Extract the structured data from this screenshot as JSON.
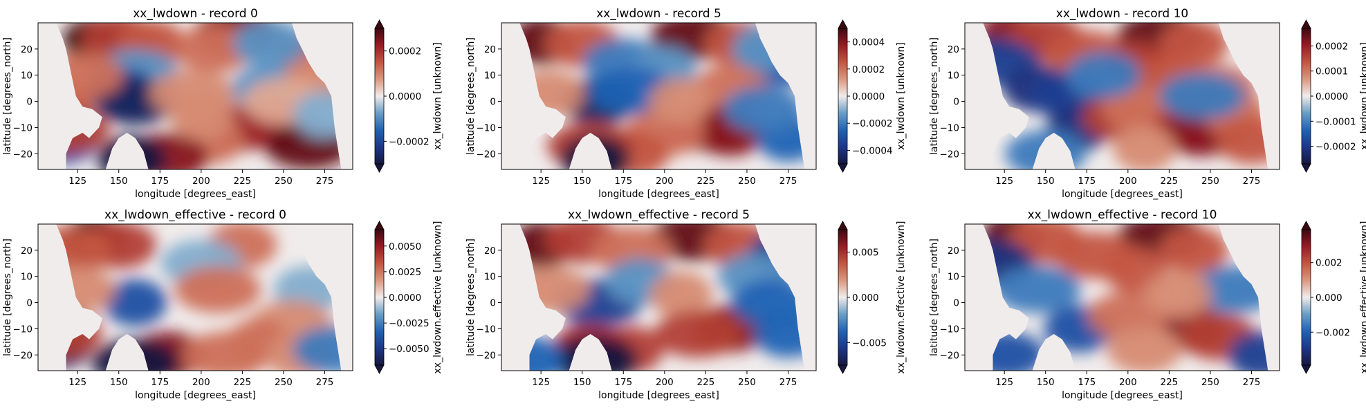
{
  "chart_data": [
    {
      "type": "heatmap",
      "title": "xx_lwdown - record 0",
      "xlabel": "longitude [degrees_east]",
      "ylabel": "latitude [degrees_north]",
      "colorbar_label": "xx_lwdown [unknown]",
      "xlim": [
        101,
        292
      ],
      "ylim": [
        -26,
        30
      ],
      "x_ticks": [
        125,
        150,
        175,
        200,
        225,
        250,
        275
      ],
      "y_ticks": [
        20,
        10,
        0,
        -10,
        -20
      ],
      "clim": [
        -0.0003,
        0.0003
      ],
      "colorbar_ticks": [
        0.0002,
        0.0,
        -0.0002
      ],
      "colorbar_tick_labels": [
        "0.0002",
        "0.0000",
        "-0.0002"
      ],
      "features": [
        {
          "x": 135,
          "y": 23,
          "v": 1.0
        },
        {
          "x": 150,
          "y": 24,
          "v": 0.6
        },
        {
          "x": 222,
          "y": 26,
          "v": 0.8
        },
        {
          "x": 170,
          "y": 22,
          "v": 0.5
        },
        {
          "x": 208,
          "y": 20,
          "v": 0.4
        },
        {
          "x": 265,
          "y": 18,
          "v": 0.5
        },
        {
          "x": 242,
          "y": 22,
          "v": -0.3
        },
        {
          "x": 160,
          "y": 11,
          "v": -0.3
        },
        {
          "x": 152,
          "y": 4,
          "v": -0.7
        },
        {
          "x": 160,
          "y": 0,
          "v": -0.9
        },
        {
          "x": 115,
          "y": 0,
          "v": 0.5
        },
        {
          "x": 130,
          "y": 10,
          "v": 0.4
        },
        {
          "x": 195,
          "y": 3,
          "v": 0.3
        },
        {
          "x": 240,
          "y": 5,
          "v": -0.3
        },
        {
          "x": 275,
          "y": 8,
          "v": 0.3
        },
        {
          "x": 245,
          "y": -9,
          "v": 0.8
        },
        {
          "x": 225,
          "y": -10,
          "v": 0.7
        },
        {
          "x": 265,
          "y": -17,
          "v": 0.9
        },
        {
          "x": 205,
          "y": -15,
          "v": 0.4
        },
        {
          "x": 180,
          "y": -21,
          "v": 0.8
        },
        {
          "x": 200,
          "y": -6,
          "v": 0.3
        },
        {
          "x": 115,
          "y": -15,
          "v": -0.6
        },
        {
          "x": 118,
          "y": -11,
          "v": 0.6
        },
        {
          "x": 158,
          "y": -22,
          "v": -1.0
        },
        {
          "x": 250,
          "y": 0,
          "v": 0.2
        },
        {
          "x": 275,
          "y": -5,
          "v": -0.2
        }
      ]
    },
    {
      "type": "heatmap",
      "title": "xx_lwdown - record 5",
      "xlabel": "longitude [degrees_east]",
      "ylabel": "latitude [degrees_north]",
      "colorbar_label": "xx_lwdown [unknown]",
      "xlim": [
        101,
        292
      ],
      "ylim": [
        -26,
        30
      ],
      "x_ticks": [
        125,
        150,
        175,
        200,
        225,
        250,
        275
      ],
      "y_ticks": [
        20,
        10,
        0,
        -10,
        -20
      ],
      "clim": [
        -0.0005,
        0.0005
      ],
      "colorbar_ticks": [
        0.0004,
        0.0002,
        0.0,
        -0.0002,
        -0.0004
      ],
      "colorbar_tick_labels": [
        "0.0004",
        "0.0002",
        "0.0000",
        "-0.0002",
        "-0.0004"
      ],
      "features": [
        {
          "x": 125,
          "y": 23,
          "v": 0.9
        },
        {
          "x": 150,
          "y": 22,
          "v": 0.5
        },
        {
          "x": 218,
          "y": 25,
          "v": 0.9
        },
        {
          "x": 245,
          "y": 22,
          "v": 0.5
        },
        {
          "x": 175,
          "y": 15,
          "v": -0.4
        },
        {
          "x": 200,
          "y": 12,
          "v": -0.3
        },
        {
          "x": 160,
          "y": 0,
          "v": -0.9
        },
        {
          "x": 180,
          "y": 4,
          "v": -0.5
        },
        {
          "x": 130,
          "y": 3,
          "v": 0.3
        },
        {
          "x": 270,
          "y": 15,
          "v": -0.6
        },
        {
          "x": 260,
          "y": 20,
          "v": -0.3
        },
        {
          "x": 240,
          "y": 5,
          "v": 0.4
        },
        {
          "x": 225,
          "y": -10,
          "v": 0.8
        },
        {
          "x": 240,
          "y": -12,
          "v": 0.8
        },
        {
          "x": 200,
          "y": -12,
          "v": 0.4
        },
        {
          "x": 275,
          "y": -14,
          "v": -0.5
        },
        {
          "x": 180,
          "y": -20,
          "v": 0.5
        },
        {
          "x": 155,
          "y": -17,
          "v": 0.6
        },
        {
          "x": 158,
          "y": -22,
          "v": -1.0
        },
        {
          "x": 260,
          "y": -3,
          "v": -0.4
        },
        {
          "x": 210,
          "y": 0,
          "v": 0.3
        }
      ]
    },
    {
      "type": "heatmap",
      "title": "xx_lwdown - record 10",
      "xlabel": "longitude [degrees_east]",
      "ylabel": "latitude [degrees_north]",
      "colorbar_label": "xx_lwdown [unknown]",
      "xlim": [
        101,
        292
      ],
      "ylim": [
        -26,
        30
      ],
      "x_ticks": [
        125,
        150,
        175,
        200,
        225,
        250,
        275
      ],
      "y_ticks": [
        20,
        10,
        0,
        -10,
        -20
      ],
      "clim": [
        -0.00027,
        0.00027
      ],
      "colorbar_ticks": [
        0.0002,
        0.0001,
        0.0,
        -0.0001,
        -0.0002
      ],
      "colorbar_tick_labels": [
        "0.0002",
        "0.0001",
        "0.0000",
        "-0.0001",
        "-0.0002"
      ],
      "features": [
        {
          "x": 128,
          "y": 25,
          "v": 0.8
        },
        {
          "x": 150,
          "y": 24,
          "v": 0.6
        },
        {
          "x": 220,
          "y": 25,
          "v": 0.9
        },
        {
          "x": 240,
          "y": 22,
          "v": 0.5
        },
        {
          "x": 175,
          "y": 18,
          "v": 0.5
        },
        {
          "x": 205,
          "y": 14,
          "v": 0.6
        },
        {
          "x": 225,
          "y": 8,
          "v": 0.5
        },
        {
          "x": 120,
          "y": 15,
          "v": -0.7
        },
        {
          "x": 145,
          "y": 5,
          "v": -0.8
        },
        {
          "x": 165,
          "y": 2,
          "v": -0.7
        },
        {
          "x": 170,
          "y": -10,
          "v": -0.8
        },
        {
          "x": 195,
          "y": -6,
          "v": 0.6
        },
        {
          "x": 210,
          "y": -3,
          "v": 0.4
        },
        {
          "x": 235,
          "y": -10,
          "v": 0.6
        },
        {
          "x": 245,
          "y": -12,
          "v": 0.8
        },
        {
          "x": 265,
          "y": -5,
          "v": 0.4
        },
        {
          "x": 255,
          "y": 5,
          "v": 0.4
        },
        {
          "x": 245,
          "y": 2,
          "v": -0.4
        },
        {
          "x": 275,
          "y": -15,
          "v": 0.5
        },
        {
          "x": 150,
          "y": -20,
          "v": -0.4
        },
        {
          "x": 210,
          "y": -18,
          "v": 0.3
        },
        {
          "x": 185,
          "y": 10,
          "v": -0.4
        }
      ]
    },
    {
      "type": "heatmap",
      "title": "xx_lwdown_effective - record 0",
      "xlabel": "longitude [degrees_east]",
      "ylabel": "latitude [degrees_north]",
      "colorbar_label": "xx_lwdown.effective [unknown]",
      "xlim": [
        101,
        292
      ],
      "ylim": [
        -26,
        30
      ],
      "x_ticks": [
        125,
        150,
        175,
        200,
        225,
        250,
        275
      ],
      "y_ticks": [
        20,
        10,
        0,
        -10,
        -20
      ],
      "clim": [
        -0.0066,
        0.0066
      ],
      "colorbar_ticks": [
        0.005,
        0.0025,
        0.0,
        -0.0025,
        -0.005
      ],
      "colorbar_tick_labels": [
        "0.0050",
        "0.0025",
        "0.0000",
        "-0.0025",
        "-0.0050"
      ],
      "features": [
        {
          "x": 135,
          "y": 24,
          "v": 1.0
        },
        {
          "x": 150,
          "y": 22,
          "v": 0.6
        },
        {
          "x": 120,
          "y": 20,
          "v": 0.5
        },
        {
          "x": 225,
          "y": 22,
          "v": 0.4
        },
        {
          "x": 200,
          "y": 15,
          "v": -0.2
        },
        {
          "x": 160,
          "y": 0,
          "v": -0.6
        },
        {
          "x": 125,
          "y": 5,
          "v": 0.3
        },
        {
          "x": 210,
          "y": 5,
          "v": 0.4
        },
        {
          "x": 265,
          "y": 5,
          "v": -0.2
        },
        {
          "x": 255,
          "y": -8,
          "v": 0.3
        },
        {
          "x": 235,
          "y": -15,
          "v": 0.4
        },
        {
          "x": 180,
          "y": -20,
          "v": 0.8
        },
        {
          "x": 215,
          "y": -20,
          "v": 0.4
        },
        {
          "x": 260,
          "y": -20,
          "v": 0.3
        },
        {
          "x": 280,
          "y": -18,
          "v": -0.4
        },
        {
          "x": 115,
          "y": -16,
          "v": -0.9
        },
        {
          "x": 117,
          "y": -12,
          "v": 0.6
        },
        {
          "x": 160,
          "y": -23,
          "v": -1.0
        }
      ]
    },
    {
      "type": "heatmap",
      "title": "xx_lwdown_effective - record 5",
      "xlabel": "longitude [degrees_east]",
      "ylabel": "latitude [degrees_north]",
      "colorbar_label": "xx_lwdown.effective [unknown]",
      "xlim": [
        101,
        292
      ],
      "ylim": [
        -26,
        30
      ],
      "x_ticks": [
        125,
        150,
        175,
        200,
        225,
        250,
        275
      ],
      "y_ticks": [
        20,
        10,
        0,
        -10,
        -20
      ],
      "clim": [
        -0.0075,
        0.0075
      ],
      "colorbar_ticks": [
        0.005,
        0.0,
        -0.005
      ],
      "colorbar_tick_labels": [
        "0.005",
        "0.000",
        "-0.005"
      ],
      "features": [
        {
          "x": 125,
          "y": 22,
          "v": 0.9
        },
        {
          "x": 150,
          "y": 24,
          "v": 0.6
        },
        {
          "x": 218,
          "y": 25,
          "v": 0.9
        },
        {
          "x": 245,
          "y": 22,
          "v": 0.5
        },
        {
          "x": 180,
          "y": 20,
          "v": 0.4
        },
        {
          "x": 270,
          "y": 18,
          "v": -0.7
        },
        {
          "x": 255,
          "y": 10,
          "v": -0.3
        },
        {
          "x": 160,
          "y": 0,
          "v": -0.7
        },
        {
          "x": 185,
          "y": 8,
          "v": -0.3
        },
        {
          "x": 130,
          "y": 5,
          "v": 0.3
        },
        {
          "x": 210,
          "y": 3,
          "v": 0.3
        },
        {
          "x": 240,
          "y": -10,
          "v": 0.8
        },
        {
          "x": 220,
          "y": -12,
          "v": 0.6
        },
        {
          "x": 275,
          "y": -12,
          "v": -0.5
        },
        {
          "x": 265,
          "y": 0,
          "v": -0.5
        },
        {
          "x": 180,
          "y": -18,
          "v": 0.6
        },
        {
          "x": 155,
          "y": -17,
          "v": 0.7
        },
        {
          "x": 158,
          "y": -22,
          "v": -1.0
        },
        {
          "x": 118,
          "y": -22,
          "v": -0.5
        }
      ]
    },
    {
      "type": "heatmap",
      "title": "xx_lwdown_effective - record 10",
      "xlabel": "longitude [degrees_east]",
      "ylabel": "latitude [degrees_north]",
      "colorbar_label": "xx_lwdown.effective [unknown]",
      "xlim": [
        101,
        292
      ],
      "ylim": [
        -26,
        30
      ],
      "x_ticks": [
        125,
        150,
        175,
        200,
        225,
        250,
        275
      ],
      "y_ticks": [
        20,
        10,
        0,
        -10,
        -20
      ],
      "clim": [
        -0.0039,
        0.0039
      ],
      "colorbar_ticks": [
        0.002,
        0.0,
        -0.002
      ],
      "colorbar_tick_labels": [
        "0.002",
        "0.000",
        "-0.002"
      ],
      "features": [
        {
          "x": 130,
          "y": 25,
          "v": 0.9
        },
        {
          "x": 150,
          "y": 24,
          "v": 0.5
        },
        {
          "x": 220,
          "y": 25,
          "v": 0.9
        },
        {
          "x": 240,
          "y": 20,
          "v": 0.5
        },
        {
          "x": 180,
          "y": 18,
          "v": 0.5
        },
        {
          "x": 205,
          "y": 12,
          "v": 0.5
        },
        {
          "x": 120,
          "y": 15,
          "v": -0.8
        },
        {
          "x": 145,
          "y": 5,
          "v": -0.4
        },
        {
          "x": 170,
          "y": -10,
          "v": -0.6
        },
        {
          "x": 200,
          "y": -5,
          "v": 0.4
        },
        {
          "x": 240,
          "y": -10,
          "v": 0.8
        },
        {
          "x": 255,
          "y": -13,
          "v": 0.6
        },
        {
          "x": 265,
          "y": 5,
          "v": -0.4
        },
        {
          "x": 230,
          "y": 3,
          "v": 0.3
        },
        {
          "x": 125,
          "y": -20,
          "v": -0.6
        },
        {
          "x": 280,
          "y": -20,
          "v": -0.7
        },
        {
          "x": 210,
          "y": -18,
          "v": 0.3
        }
      ]
    }
  ]
}
